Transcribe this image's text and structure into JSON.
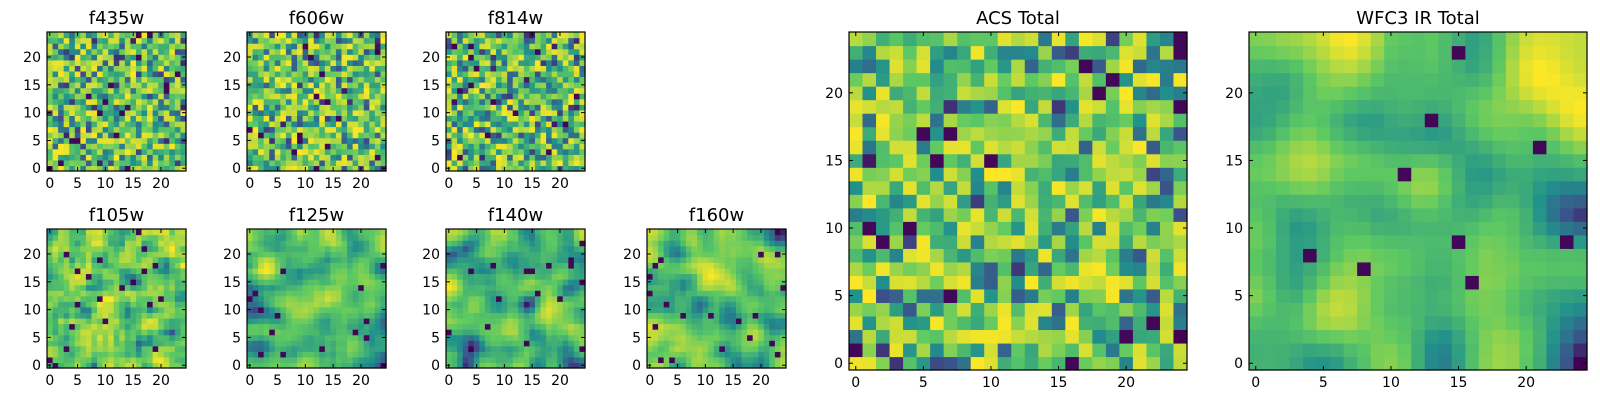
{
  "figure": {
    "colormap": "viridis",
    "colormap_stops": [
      "#440154",
      "#3b528b",
      "#21918c",
      "#5ec962",
      "#fde725"
    ]
  },
  "chart_data": [
    {
      "type": "heatmap",
      "title": "f435w",
      "grid_size": [
        25,
        25
      ],
      "xlim": [
        -0.5,
        24.5
      ],
      "ylim": [
        -0.5,
        24.5
      ],
      "x_ticks": [
        0,
        5,
        10,
        15,
        20
      ],
      "y_ticks": [
        0,
        5,
        10,
        15,
        20
      ],
      "x_tick_labels": [
        "0",
        "5",
        "10",
        "15",
        "20"
      ],
      "y_tick_labels": [
        "0",
        "5",
        "10",
        "15",
        "20"
      ],
      "texture": "pixel noise",
      "seed": 11,
      "smooth": 0,
      "bias": 0.62
    },
    {
      "type": "heatmap",
      "title": "f606w",
      "grid_size": [
        25,
        25
      ],
      "xlim": [
        -0.5,
        24.5
      ],
      "ylim": [
        -0.5,
        24.5
      ],
      "x_ticks": [
        0,
        5,
        10,
        15,
        20
      ],
      "y_ticks": [
        0,
        5,
        10,
        15,
        20
      ],
      "x_tick_labels": [
        "0",
        "5",
        "10",
        "15",
        "20"
      ],
      "y_tick_labels": [
        "0",
        "5",
        "10",
        "15",
        "20"
      ],
      "texture": "pixel noise",
      "seed": 23,
      "smooth": 0,
      "bias": 0.62
    },
    {
      "type": "heatmap",
      "title": "f814w",
      "grid_size": [
        25,
        25
      ],
      "xlim": [
        -0.5,
        24.5
      ],
      "ylim": [
        -0.5,
        24.5
      ],
      "x_ticks": [
        0,
        5,
        10,
        15,
        20
      ],
      "y_ticks": [
        0,
        5,
        10,
        15,
        20
      ],
      "x_tick_labels": [
        "0",
        "5",
        "10",
        "15",
        "20"
      ],
      "y_tick_labels": [
        "0",
        "5",
        "10",
        "15",
        "20"
      ],
      "texture": "pixel noise",
      "seed": 37,
      "smooth": 0,
      "bias": 0.58
    },
    {
      "type": "heatmap",
      "title": "f105w",
      "grid_size": [
        25,
        25
      ],
      "xlim": [
        -0.5,
        24.5
      ],
      "ylim": [
        -0.5,
        24.5
      ],
      "x_ticks": [
        0,
        5,
        10,
        15,
        20
      ],
      "y_ticks": [
        0,
        5,
        10,
        15,
        20
      ],
      "x_tick_labels": [
        "0",
        "5",
        "10",
        "15",
        "20"
      ],
      "y_tick_labels": [
        "0",
        "5",
        "10",
        "15",
        "20"
      ],
      "texture": "correlated noise",
      "seed": 41,
      "smooth": 1,
      "bias": 0.58
    },
    {
      "type": "heatmap",
      "title": "f125w",
      "grid_size": [
        25,
        25
      ],
      "xlim": [
        -0.5,
        24.5
      ],
      "ylim": [
        -0.5,
        24.5
      ],
      "x_ticks": [
        0,
        5,
        10,
        15,
        20
      ],
      "y_ticks": [
        0,
        5,
        10,
        15,
        20
      ],
      "x_tick_labels": [
        "0",
        "5",
        "10",
        "15",
        "20"
      ],
      "y_tick_labels": [
        "0",
        "5",
        "10",
        "15",
        "20"
      ],
      "texture": "correlated noise",
      "seed": 53,
      "smooth": 2,
      "bias": 0.55
    },
    {
      "type": "heatmap",
      "title": "f140w",
      "grid_size": [
        25,
        25
      ],
      "xlim": [
        -0.5,
        24.5
      ],
      "ylim": [
        -0.5,
        24.5
      ],
      "x_ticks": [
        0,
        5,
        10,
        15,
        20
      ],
      "y_ticks": [
        0,
        5,
        10,
        15,
        20
      ],
      "x_tick_labels": [
        "0",
        "5",
        "10",
        "15",
        "20"
      ],
      "y_tick_labels": [
        "0",
        "5",
        "10",
        "15",
        "20"
      ],
      "texture": "correlated noise",
      "seed": 67,
      "smooth": 2,
      "bias": 0.6
    },
    {
      "type": "heatmap",
      "title": "f160w",
      "grid_size": [
        25,
        25
      ],
      "xlim": [
        -0.5,
        24.5
      ],
      "ylim": [
        -0.5,
        24.5
      ],
      "x_ticks": [
        0,
        5,
        10,
        15,
        20
      ],
      "y_ticks": [
        0,
        5,
        10,
        15,
        20
      ],
      "x_tick_labels": [
        "0",
        "5",
        "10",
        "15",
        "20"
      ],
      "y_tick_labels": [
        "0",
        "5",
        "10",
        "15",
        "20"
      ],
      "texture": "correlated noise",
      "seed": 79,
      "smooth": 2,
      "bias": 0.55
    },
    {
      "type": "heatmap",
      "title": "ACS Total",
      "grid_size": [
        25,
        25
      ],
      "xlim": [
        -0.5,
        24.5
      ],
      "ylim": [
        -0.5,
        24.5
      ],
      "x_ticks": [
        0,
        5,
        10,
        15,
        20
      ],
      "y_ticks": [
        0,
        5,
        10,
        15,
        20
      ],
      "x_tick_labels": [
        "0",
        "5",
        "10",
        "15",
        "20"
      ],
      "y_tick_labels": [
        "0",
        "5",
        "10",
        "15",
        "20"
      ],
      "texture": "pixel noise",
      "seed": 97,
      "smooth": 0,
      "bias": 0.66
    },
    {
      "type": "heatmap",
      "title": "WFC3 IR Total",
      "grid_size": [
        25,
        25
      ],
      "xlim": [
        -0.5,
        24.5
      ],
      "ylim": [
        -0.5,
        24.5
      ],
      "x_ticks": [
        0,
        5,
        10,
        15,
        20
      ],
      "y_ticks": [
        0,
        5,
        10,
        15,
        20
      ],
      "x_tick_labels": [
        "0",
        "5",
        "10",
        "15",
        "20"
      ],
      "y_tick_labels": [
        "0",
        "5",
        "10",
        "15",
        "20"
      ],
      "texture": "correlated noise",
      "seed": 113,
      "smooth": 3,
      "bias": 0.55
    }
  ]
}
